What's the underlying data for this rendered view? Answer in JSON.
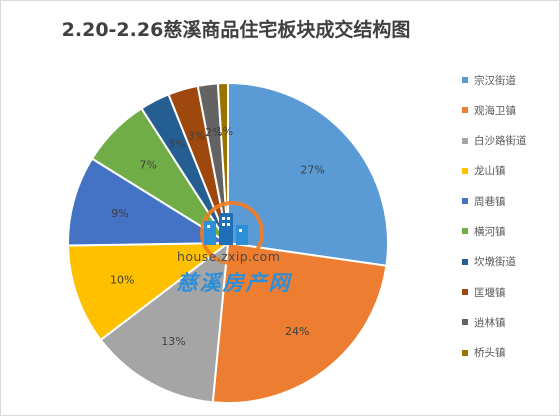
{
  "chart_data": {
    "type": "pie",
    "title": "2.20-2.26慈溪商品住宅板块成交结构图",
    "legend_position": "right",
    "slices": [
      {
        "label": "宗汉街道",
        "value": 27,
        "display": "27%",
        "color": "#5B9BD5"
      },
      {
        "label": "观海卫镇",
        "value": 24,
        "display": "24%",
        "color": "#ED7D31"
      },
      {
        "label": "白沙路街道",
        "value": 13,
        "display": "13%",
        "color": "#A5A5A5"
      },
      {
        "label": "龙山镇",
        "value": 10,
        "display": "10%",
        "color": "#FFC000"
      },
      {
        "label": "周巷镇",
        "value": 9,
        "display": "9%",
        "color": "#4472C4"
      },
      {
        "label": "横河镇",
        "value": 7,
        "display": "7%",
        "color": "#70AD47"
      },
      {
        "label": "坎墩街道",
        "value": 3,
        "display": "3%",
        "color": "#255E91"
      },
      {
        "label": "匡堰镇",
        "value": 3,
        "display": "3%",
        "color": "#9E480E"
      },
      {
        "label": "逍林镇",
        "value": 2,
        "display": "2%",
        "color": "#636363"
      },
      {
        "label": "桥头镇",
        "value": 1,
        "display": "1%",
        "color": "#997300"
      }
    ]
  },
  "watermark": {
    "url": "house.zxip.com",
    "name": "慈溪房产网",
    "logo": "building-logo-icon"
  }
}
